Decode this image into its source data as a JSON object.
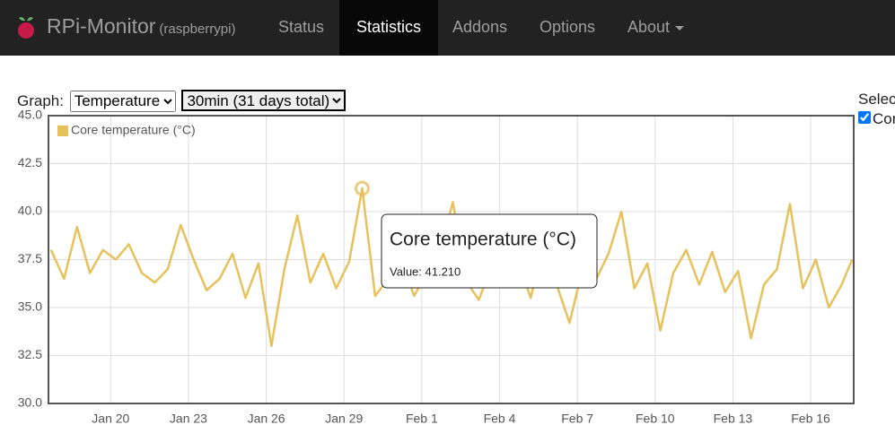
{
  "navbar": {
    "brand": "RPi-Monitor",
    "host": "(raspberrypi)",
    "items": [
      "Status",
      "Statistics",
      "Addons",
      "Options",
      "About"
    ],
    "active": "Statistics"
  },
  "controls": {
    "graph_label": "Graph:",
    "graph_select": "Temperature",
    "period_select": "30min (31 days total)",
    "side_label": "Selec",
    "side_checkbox": "Cor"
  },
  "chart_data": {
    "type": "line",
    "x": [
      17.7,
      18.2,
      18.7,
      19.2,
      19.7,
      20.2,
      20.7,
      21.2,
      21.7,
      22.2,
      22.7,
      23.2,
      23.7,
      24.2,
      24.7,
      25.2,
      25.7,
      26.2,
      26.7,
      27.2,
      27.7,
      28.2,
      28.7,
      29.2,
      29.7,
      30.2,
      30.7,
      31.2,
      31.7,
      32.2,
      32.7,
      33.2,
      33.7,
      34.2,
      34.7,
      35.2,
      35.7,
      36.2,
      36.7,
      37.2,
      37.7,
      38.2,
      38.7,
      39.2,
      39.7,
      40.2,
      40.7,
      41.2,
      41.7,
      42.2,
      42.7,
      43.2,
      43.7,
      44.2,
      44.7,
      45.2,
      45.7,
      46.2,
      46.7,
      47.2,
      47.7,
      48.2,
      48.6
    ],
    "series": [
      {
        "name": "Core temperature (°C)",
        "color": "#e6c15c",
        "values": [
          38.0,
          36.5,
          39.2,
          36.8,
          38.0,
          37.5,
          38.3,
          36.8,
          36.3,
          37.0,
          39.3,
          37.5,
          35.9,
          36.5,
          37.8,
          35.5,
          37.3,
          33.0,
          37.0,
          39.8,
          36.3,
          37.8,
          36.0,
          37.4,
          41.21,
          35.6,
          36.5,
          37.6,
          35.6,
          36.8,
          38.0,
          40.5,
          36.4,
          35.4,
          37.2,
          36.8,
          37.5,
          35.5,
          38.3,
          36.2,
          34.2,
          37.0,
          36.4,
          37.8,
          40.0,
          36.0,
          37.3,
          33.8,
          36.8,
          38.0,
          36.2,
          37.9,
          35.8,
          36.9,
          33.4,
          36.2,
          37.0,
          40.4,
          36.0,
          37.5,
          35.0,
          36.2,
          37.5
        ]
      }
    ],
    "xlim": [
      17.6,
      48.66
    ],
    "xticks": [
      {
        "value": 20,
        "label": "Jan 20"
      },
      {
        "value": 23,
        "label": "Jan 23"
      },
      {
        "value": 26,
        "label": "Jan 26"
      },
      {
        "value": 29,
        "label": "Jan 29"
      },
      {
        "value": 32,
        "label": "Feb 1"
      },
      {
        "value": 35,
        "label": "Feb 4"
      },
      {
        "value": 38,
        "label": "Feb 7"
      },
      {
        "value": 41,
        "label": "Feb 10"
      },
      {
        "value": 44,
        "label": "Feb 13"
      },
      {
        "value": 47,
        "label": "Feb 16"
      }
    ],
    "ylim": [
      30,
      45
    ],
    "yticks": [
      {
        "value": 30,
        "label": "30.0"
      },
      {
        "value": 32.5,
        "label": "32.5"
      },
      {
        "value": 35,
        "label": "35.0"
      },
      {
        "value": 37.5,
        "label": "37.5"
      },
      {
        "value": 40,
        "label": "40.0"
      },
      {
        "value": 42.5,
        "label": "42.5"
      },
      {
        "value": 45,
        "label": "45.0"
      }
    ],
    "grid": true,
    "legend": "top-left",
    "tooltip": {
      "index": 24,
      "text": "Value: 41.210"
    }
  }
}
